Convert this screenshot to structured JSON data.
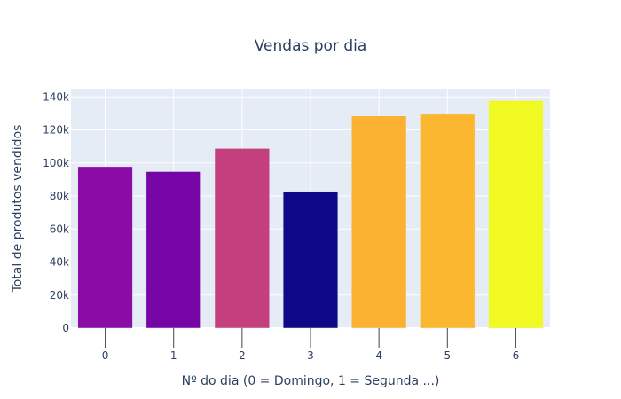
{
  "chart_data": {
    "type": "bar",
    "title": "Vendas por dia",
    "xlabel": "Nº do dia (0 = Domingo, 1 = Segunda ...)",
    "ylabel": "Total de produtos vendidos",
    "categories": [
      "0",
      "1",
      "2",
      "3",
      "4",
      "5",
      "6"
    ],
    "values": [
      97800,
      94800,
      108800,
      82800,
      128500,
      129500,
      137800
    ],
    "ylim": [
      0,
      145000
    ],
    "yticks": [
      0,
      20000,
      40000,
      60000,
      80000,
      100000,
      120000,
      140000
    ],
    "ytick_labels": [
      "0",
      "20k",
      "40k",
      "60k",
      "80k",
      "100k",
      "120k",
      "140k"
    ],
    "bar_colors": [
      "#8a0ba6",
      "#7605a6",
      "#c33f7d",
      "#0d0887",
      "#fbb131",
      "#fbb730",
      "#f0f921"
    ],
    "plot_background": "#e5ecf6",
    "grid": true,
    "x_ticks_outside": true
  }
}
